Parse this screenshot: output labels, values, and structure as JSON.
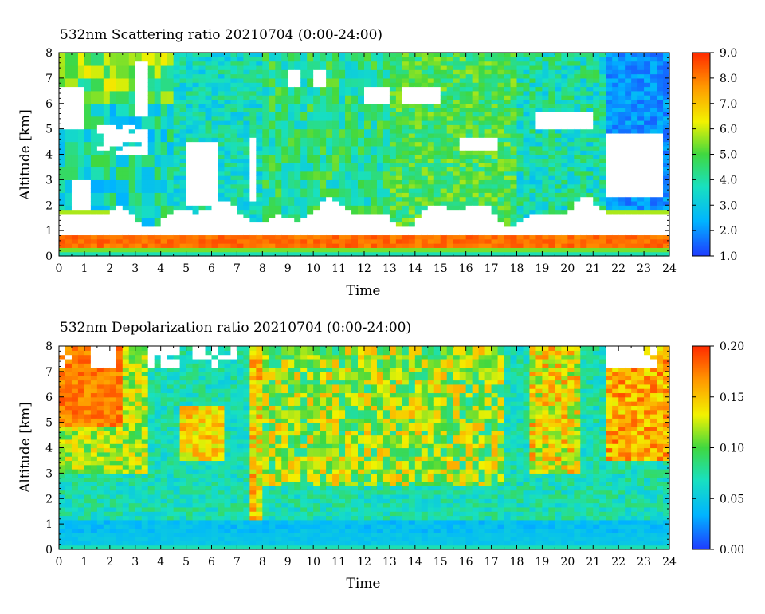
{
  "chart_data": [
    {
      "type": "heatmap",
      "title": "532nm Scattering ratio  20210704 (0:00-24:00)",
      "xlabel": "Time",
      "ylabel": "Altitude [km]",
      "xlim": [
        0,
        24
      ],
      "ylim": [
        0,
        8
      ],
      "x_ticks": [
        "0",
        "1",
        "2",
        "3",
        "4",
        "5",
        "6",
        "7",
        "8",
        "9",
        "10",
        "11",
        "12",
        "13",
        "14",
        "15",
        "16",
        "17",
        "18",
        "19",
        "20",
        "21",
        "22",
        "23",
        "24"
      ],
      "y_ticks": [
        "0",
        "1",
        "2",
        "3",
        "4",
        "5",
        "6",
        "7",
        "8"
      ],
      "colorbar": {
        "range": [
          1.0,
          9.0
        ],
        "tick_labels": [
          "1.0",
          "2.0",
          "3.0",
          "4.0",
          "5.0",
          "6.0",
          "7.0",
          "8.0",
          "9.0"
        ],
        "colors": [
          "#1f3bff",
          "#00b4ff",
          "#18e0c0",
          "#40d840",
          "#f2f200",
          "#ff9a00",
          "#ff2a00"
        ]
      },
      "blank_color": "#ffffff"
    },
    {
      "type": "heatmap",
      "title": "532nm Depolarization ratio  20210704 (0:00-24:00)",
      "xlabel": "Time",
      "ylabel": "Altitude [km]",
      "xlim": [
        0,
        24
      ],
      "ylim": [
        0,
        8
      ],
      "x_ticks": [
        "0",
        "1",
        "2",
        "3",
        "4",
        "5",
        "6",
        "7",
        "8",
        "9",
        "10",
        "11",
        "12",
        "13",
        "14",
        "15",
        "16",
        "17",
        "18",
        "19",
        "20",
        "21",
        "22",
        "23",
        "24"
      ],
      "y_ticks": [
        "0",
        "1",
        "2",
        "3",
        "4",
        "5",
        "6",
        "7",
        "8"
      ],
      "colorbar": {
        "range": [
          0.0,
          0.2
        ],
        "tick_labels": [
          "0.00",
          "0.05",
          "0.10",
          "0.15",
          "0.20"
        ],
        "colors": [
          "#1f3bff",
          "#00b4ff",
          "#18e0c0",
          "#40d840",
          "#f2f200",
          "#ff9a00",
          "#ff2a00"
        ]
      },
      "blank_color": "#ffffff"
    }
  ]
}
